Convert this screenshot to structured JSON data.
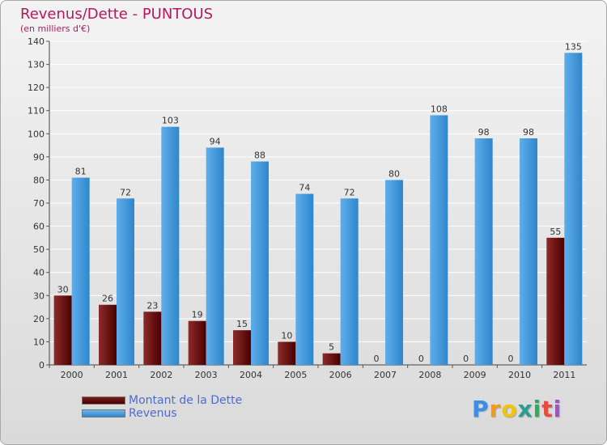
{
  "title": "Revenus/Dette - PUNTOUS",
  "subtitle": "(en milliers d'€)",
  "brand": {
    "letters": [
      "P",
      "r",
      "o",
      "x",
      "i",
      "t",
      "i"
    ],
    "colors": [
      "#3a8ee6",
      "#f39c12",
      "#f1c40f",
      "#2a9d8f",
      "#27ae60",
      "#e74c3c",
      "#9b59b6"
    ]
  },
  "legend": {
    "dette": "Montant de la Dette",
    "revenus": "Revenus"
  },
  "colors": {
    "dette_top": "#8e2a2a",
    "dette_bottom": "#4a0000",
    "revenus_top": "#5faeea",
    "revenus_bottom": "#2f86cc",
    "title": "#b3195c",
    "legend_text": "#4d6bd1",
    "grid": "#ffffff"
  },
  "chart_data": {
    "type": "bar",
    "title": "Revenus/Dette - PUNTOUS",
    "ylabel": "(en milliers d'€)",
    "xlabel": "",
    "ylim": [
      0,
      140
    ],
    "yticks": [
      0,
      10,
      20,
      30,
      40,
      50,
      60,
      70,
      80,
      90,
      100,
      110,
      120,
      130,
      140
    ],
    "categories": [
      "2000",
      "2001",
      "2002",
      "2003",
      "2004",
      "2005",
      "2006",
      "2007",
      "2008",
      "2009",
      "2010",
      "2011"
    ],
    "series": [
      {
        "name": "Montant de la Dette",
        "key": "dette",
        "values": [
          30,
          26,
          23,
          19,
          15,
          10,
          5,
          0,
          0,
          0,
          0,
          55
        ]
      },
      {
        "name": "Revenus",
        "key": "revenus",
        "values": [
          81,
          72,
          103,
          94,
          88,
          74,
          72,
          80,
          108,
          98,
          98,
          135
        ]
      }
    ],
    "grid": true,
    "legend_position": "bottom-left"
  }
}
